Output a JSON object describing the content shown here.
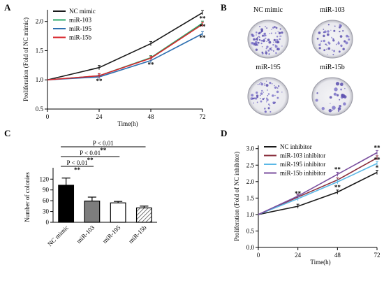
{
  "panels": {
    "A": {
      "letter": "A"
    },
    "B": {
      "letter": "B"
    },
    "C": {
      "letter": "C"
    },
    "D": {
      "letter": "D"
    }
  },
  "chart_data": [
    {
      "panel": "A",
      "type": "line",
      "title": "",
      "xlabel": "Time(h)",
      "ylabel": "Proliferation (Fold of NC mimic)",
      "x": [
        0,
        24,
        48,
        72
      ],
      "xticks": [
        "0",
        "24",
        "48",
        "72"
      ],
      "ylim": [
        0.5,
        2.2
      ],
      "yticks": [
        "0.5",
        "1.0",
        "1.5",
        "2.0"
      ],
      "grid": false,
      "legend_position": "top-left",
      "series": [
        {
          "name": "NC mimic",
          "color": "#1a1a1a",
          "values": [
            1.0,
            1.21,
            1.62,
            2.15
          ]
        },
        {
          "name": "miR-103",
          "color": "#2aa86a",
          "values": [
            1.0,
            1.07,
            1.38,
            1.97
          ]
        },
        {
          "name": "miR-195",
          "color": "#2d6fb0",
          "values": [
            1.0,
            1.05,
            1.33,
            1.79
          ]
        },
        {
          "name": "miR-15b",
          "color": "#d8232a",
          "values": [
            1.0,
            1.07,
            1.37,
            1.95
          ]
        }
      ],
      "annotations": [
        {
          "x": 24,
          "y": 0.98,
          "text": "**"
        },
        {
          "x": 48,
          "y": 1.26,
          "text": "**"
        },
        {
          "x": 72,
          "y": 2.05,
          "text": "**"
        },
        {
          "x": 72,
          "y": 1.91,
          "text": "**"
        },
        {
          "x": 72,
          "y": 1.72,
          "text": "**"
        }
      ]
    },
    {
      "panel": "C",
      "type": "bar",
      "title": "",
      "xlabel": "",
      "ylabel": "Number of colonies",
      "categories": [
        "NC mimic",
        "miR-103",
        "miR-195",
        "miR-15b"
      ],
      "values": [
        103,
        59,
        54,
        40
      ],
      "errors": [
        20,
        11,
        4,
        5
      ],
      "ylim": [
        0,
        140
      ],
      "yticks": [
        "0",
        "30",
        "60",
        "90",
        "120"
      ],
      "grid": false,
      "patterns": [
        "solid",
        "gray",
        "white",
        "hatch"
      ],
      "comparisons": [
        {
          "from": 0,
          "to": 1,
          "p_label": "P < 0.01",
          "stars": "**"
        },
        {
          "from": 0,
          "to": 2,
          "p_label": "P < 0.01",
          "stars": "**"
        },
        {
          "from": 0,
          "to": 3,
          "p_label": "P < 0.01",
          "stars": "**"
        }
      ]
    },
    {
      "panel": "D",
      "type": "line",
      "title": "",
      "xlabel": "Time(h)",
      "ylabel": "Proliferation (Fold of NC inhibitor)",
      "x": [
        0,
        24,
        48,
        72
      ],
      "xticks": [
        "0",
        "24",
        "48",
        "72"
      ],
      "ylim": [
        0.0,
        3.1
      ],
      "yticks": [
        "0.0",
        "0.5",
        "1.0",
        "1.5",
        "2.0",
        "2.5",
        "3.0"
      ],
      "grid": false,
      "legend_position": "top-left",
      "series": [
        {
          "name": "NC inhibitor",
          "color": "#1a1a1a",
          "values": [
            1.0,
            1.25,
            1.68,
            2.28
          ]
        },
        {
          "name": "miR-103 inhibitor",
          "color": "#8a2f3c",
          "values": [
            1.0,
            1.53,
            2.05,
            2.72
          ]
        },
        {
          "name": "miR-195 inhibitor",
          "color": "#5bb8e6",
          "values": [
            1.0,
            1.48,
            1.99,
            2.55
          ]
        },
        {
          "name": "miR-15b inhibitor",
          "color": "#7a4f9e",
          "values": [
            1.0,
            1.56,
            2.22,
            2.88
          ]
        }
      ],
      "annotations": [
        {
          "x": 24,
          "y": 1.63,
          "text": "**"
        },
        {
          "x": 48,
          "y": 2.37,
          "text": "**"
        },
        {
          "x": 48,
          "y": 1.83,
          "text": "**"
        },
        {
          "x": 72,
          "y": 3.03,
          "text": "**"
        },
        {
          "x": 72,
          "y": 2.66,
          "text": "**"
        },
        {
          "x": 72,
          "y": 2.42,
          "text": "*"
        }
      ]
    }
  ],
  "dishes": {
    "panel": "B",
    "items": [
      {
        "label": "NC mimic",
        "density": "high"
      },
      {
        "label": "miR-103",
        "density": "medium"
      },
      {
        "label": "miR-195",
        "density": "medium"
      },
      {
        "label": "miR-15b",
        "density": "low"
      }
    ]
  }
}
